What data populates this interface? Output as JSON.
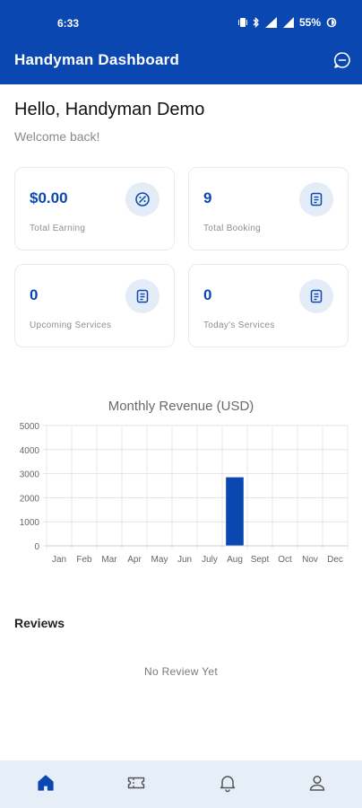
{
  "status_bar": {
    "time": "6:33",
    "battery": "55%"
  },
  "app_bar": {
    "title": "Handyman Dashboard",
    "chat_icon": "chat-bubble-icon"
  },
  "greeting": {
    "hello": "Hello, Handyman Demo",
    "welcome": "Welcome back!"
  },
  "stats": [
    {
      "value": "$0.00",
      "label": "Total Earning",
      "icon": "earning-icon"
    },
    {
      "value": "9",
      "label": "Total Booking",
      "icon": "document-icon"
    },
    {
      "value": "0",
      "label": "Upcoming Services",
      "icon": "document-icon"
    },
    {
      "value": "0",
      "label": "Today's Services",
      "icon": "document-icon"
    }
  ],
  "chart_data": {
    "type": "bar",
    "title": "Monthly Revenue (USD)",
    "categories": [
      "Jan",
      "Feb",
      "Mar",
      "Apr",
      "May",
      "Jun",
      "July",
      "Aug",
      "Sept",
      "Oct",
      "Nov",
      "Dec"
    ],
    "values": [
      0,
      0,
      0,
      0,
      0,
      0,
      0,
      2850,
      0,
      0,
      0,
      0
    ],
    "ylim": [
      0,
      5000
    ],
    "yticks": [
      0,
      1000,
      2000,
      3000,
      4000,
      5000
    ],
    "grid": true,
    "bar_color": "#0a47b0"
  },
  "reviews": {
    "heading": "Reviews",
    "empty_text": "No Review Yet"
  },
  "bottom_nav": {
    "active_color": "#0a47b0",
    "items": [
      {
        "icon": "home-icon",
        "active": true
      },
      {
        "icon": "ticket-icon",
        "active": false
      },
      {
        "icon": "bell-icon",
        "active": false
      },
      {
        "icon": "profile-icon",
        "active": false
      }
    ]
  }
}
